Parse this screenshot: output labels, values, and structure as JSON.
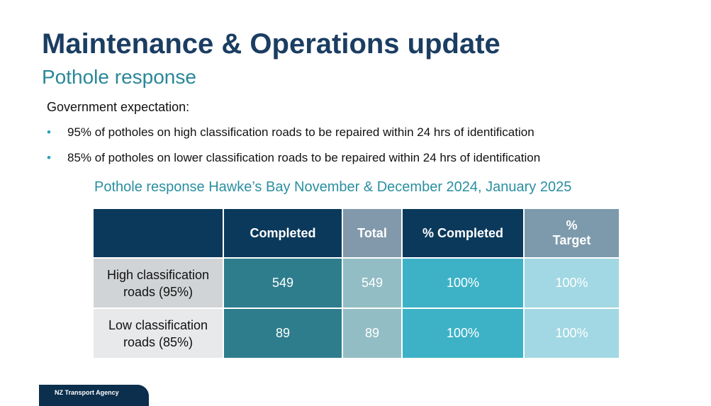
{
  "header": {
    "title": "Maintenance & Operations update",
    "subtitle": "Pothole response"
  },
  "expectation": {
    "label": "Government expectation:",
    "bullets": [
      "95% of potholes on high classification roads to be repaired within 24 hrs of identification",
      "85% of potholes on lower classification roads to be repaired within 24 hrs of identification"
    ]
  },
  "table": {
    "caption": "Pothole response Hawke’s Bay November & December 2024, January 2025",
    "columns": [
      "Completed",
      "Total",
      "% Completed",
      "% Target"
    ],
    "rows": [
      {
        "label": "High classification roads (95%)",
        "values": [
          "549",
          "549",
          "100%",
          "100%"
        ]
      },
      {
        "label": "Low classification roads (85%)",
        "values": [
          "89",
          "89",
          "100%",
          "100%"
        ]
      }
    ]
  },
  "footer": {
    "brand": "NZ Transport Agency"
  }
}
